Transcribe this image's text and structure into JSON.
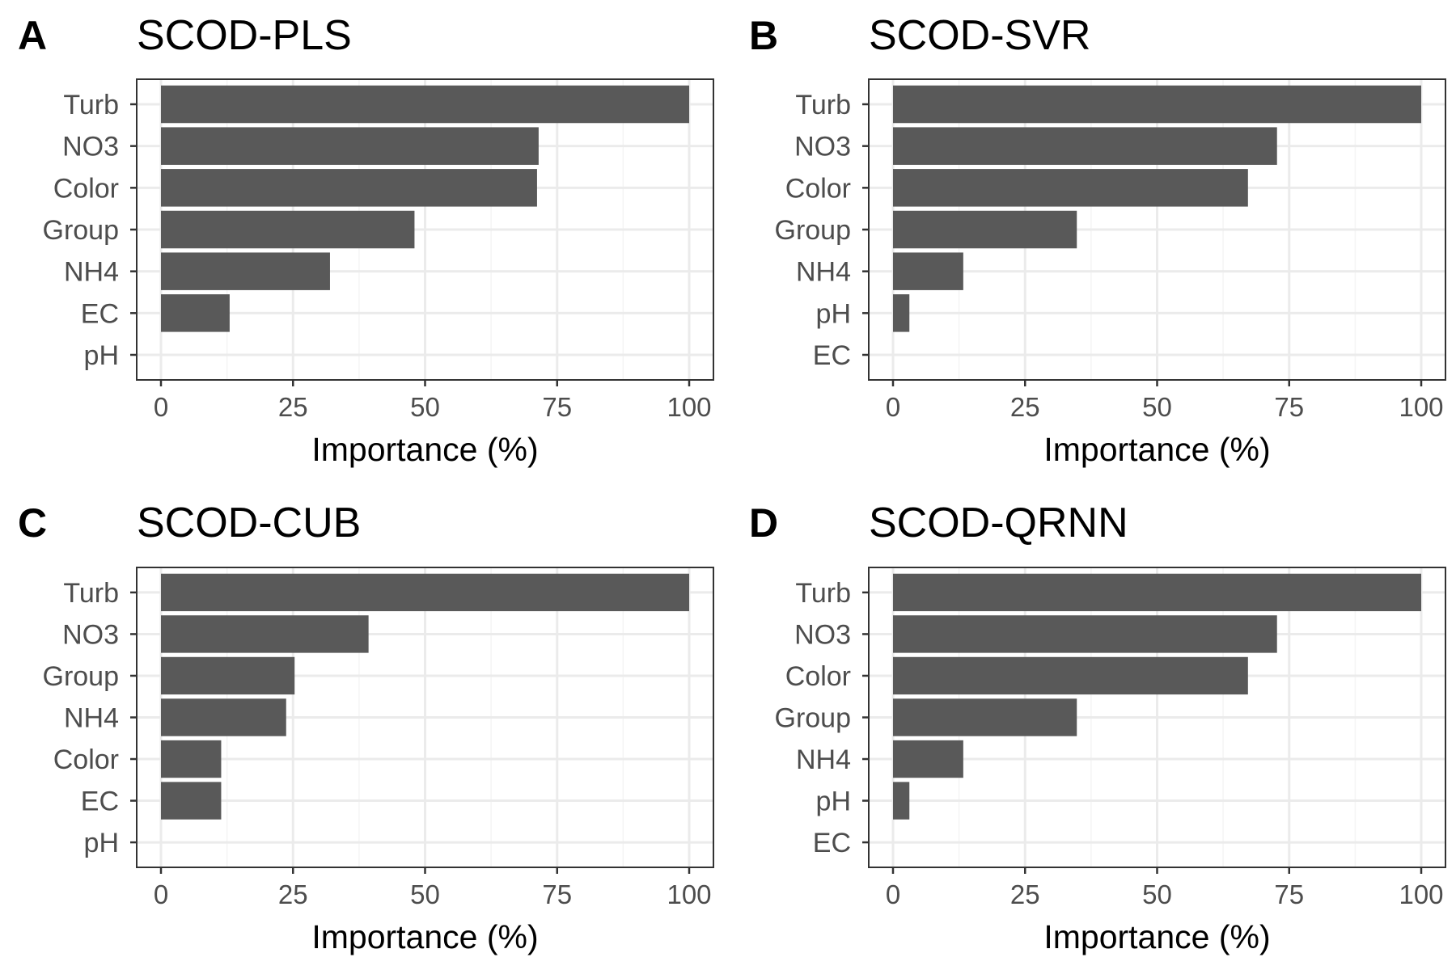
{
  "chart_data": [
    {
      "type": "bar",
      "orientation": "horizontal",
      "panel": "A",
      "title": "SCOD-PLS",
      "xlabel": "Importance (%)",
      "ylabel": "",
      "xlim": [
        0,
        100
      ],
      "xticks": [
        "0",
        "25",
        "50",
        "75",
        "100"
      ],
      "categories": [
        "Turb",
        "NO3",
        "Color",
        "Group",
        "NH4",
        "EC",
        "pH"
      ],
      "values": [
        100,
        71.5,
        71.2,
        48,
        32,
        13,
        0
      ],
      "grid": true,
      "bar_color": "#595959"
    },
    {
      "type": "bar",
      "orientation": "horizontal",
      "panel": "B",
      "title": "SCOD-SVR",
      "xlabel": "Importance (%)",
      "ylabel": "",
      "xlim": [
        0,
        100
      ],
      "xticks": [
        "0",
        "25",
        "50",
        "75",
        "100"
      ],
      "categories": [
        "Turb",
        "NO3",
        "Color",
        "Group",
        "NH4",
        "pH",
        "EC"
      ],
      "values": [
        100,
        72.7,
        67.2,
        34.8,
        13.3,
        3.1,
        0
      ],
      "grid": true,
      "bar_color": "#595959"
    },
    {
      "type": "bar",
      "orientation": "horizontal",
      "panel": "C",
      "title": "SCOD-CUB",
      "xlabel": "Importance (%)",
      "ylabel": "",
      "xlim": [
        0,
        100
      ],
      "xticks": [
        "0",
        "25",
        "50",
        "75",
        "100"
      ],
      "categories": [
        "Turb",
        "NO3",
        "Group",
        "NH4",
        "Color",
        "EC",
        "pH"
      ],
      "values": [
        100,
        39.3,
        25.3,
        23.7,
        11.4,
        11.4,
        0
      ],
      "grid": true,
      "bar_color": "#595959"
    },
    {
      "type": "bar",
      "orientation": "horizontal",
      "panel": "D",
      "title": "SCOD-QRNN",
      "xlabel": "Importance (%)",
      "ylabel": "",
      "xlim": [
        0,
        100
      ],
      "xticks": [
        "0",
        "25",
        "50",
        "75",
        "100"
      ],
      "categories": [
        "Turb",
        "NO3",
        "Color",
        "Group",
        "NH4",
        "pH",
        "EC"
      ],
      "values": [
        100,
        72.7,
        67.2,
        34.8,
        13.3,
        3.1,
        0
      ],
      "grid": true,
      "bar_color": "#595959"
    }
  ]
}
